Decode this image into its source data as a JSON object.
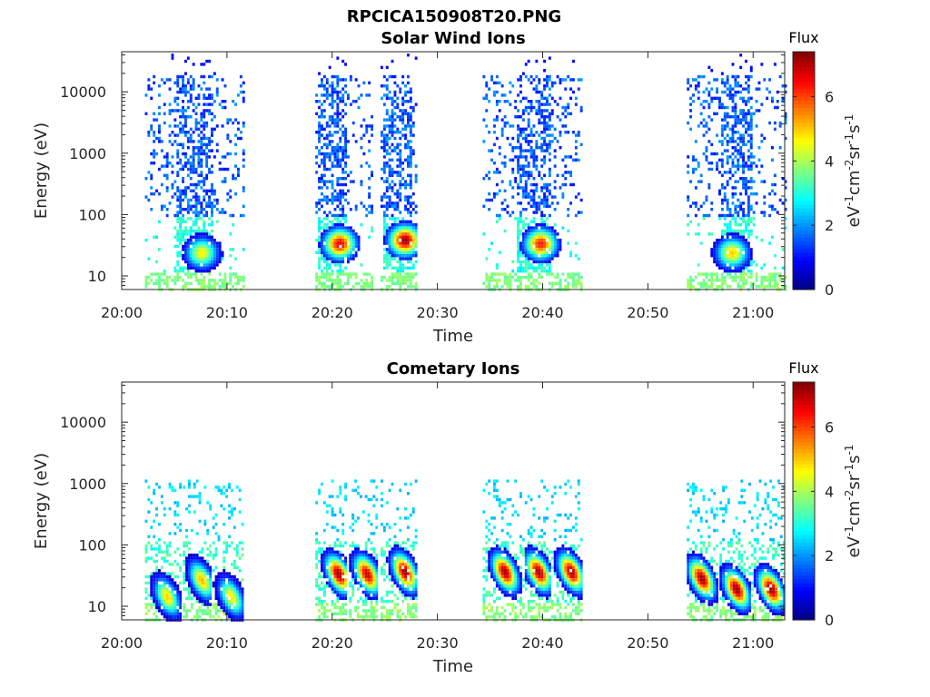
{
  "figure_title": "RPCICA150908T20.PNG",
  "chart_data": [
    {
      "type": "heatmap",
      "title": "Solar Wind Ions",
      "xlabel": "Time",
      "ylabel": "Energy (eV)",
      "x_ticks": [
        "20:00",
        "20:10",
        "20:20",
        "20:30",
        "20:40",
        "20:50",
        "21:00"
      ],
      "x_range_min": [
        0,
        63
      ],
      "y_scale": "log",
      "y_ticks": [
        "10",
        "100",
        "1000",
        "10000"
      ],
      "y_range_eV": [
        6,
        45000
      ],
      "colorbar": {
        "label": "Flux",
        "unit": "eV-1cm-2sr-1s-1",
        "ticks": [
          "0",
          "2",
          "4",
          "6"
        ],
        "range": [
          0,
          7.4
        ]
      },
      "bursts": [
        {
          "start_min": 2.2,
          "end_min": 11.6,
          "core_start": 5.2,
          "core_end": 8.6,
          "peak_min": 7.5,
          "peak_eV": 25,
          "peak_flux": 4.7
        },
        {
          "start_min": 18.4,
          "end_min": 23.8,
          "core_start": 18.6,
          "core_end": 21.2,
          "peak_min": 20.6,
          "peak_eV": 35,
          "peak_flux": 6.7
        },
        {
          "start_min": 24.6,
          "end_min": 28.0,
          "core_start": 24.8,
          "core_end": 27.6,
          "peak_min": 26.8,
          "peak_eV": 40,
          "peak_flux": 7.2
        },
        {
          "start_min": 34.3,
          "end_min": 43.7,
          "core_start": 37.5,
          "core_end": 40.6,
          "peak_min": 39.7,
          "peak_eV": 35,
          "peak_flux": 6.4
        },
        {
          "start_min": 53.7,
          "end_min": 63.0,
          "core_start": 56.9,
          "core_end": 59.8,
          "peak_min": 57.9,
          "peak_eV": 25,
          "peak_flux": 5.0
        }
      ]
    },
    {
      "type": "heatmap",
      "title": "Cometary Ions",
      "xlabel": "Time",
      "ylabel": "Energy (eV)",
      "x_ticks": [
        "20:00",
        "20:10",
        "20:20",
        "20:30",
        "20:40",
        "20:50",
        "21:00"
      ],
      "x_range_min": [
        0,
        63
      ],
      "y_scale": "log",
      "y_ticks": [
        "10",
        "100",
        "1000",
        "10000"
      ],
      "y_range_eV": [
        6,
        45000
      ],
      "colorbar": {
        "label": "Flux",
        "unit": "eV-1cm-2sr-1s-1",
        "ticks": [
          "0",
          "2",
          "4",
          "6"
        ],
        "range": [
          0,
          7.4
        ]
      },
      "bursts": [
        {
          "start_min": 2.2,
          "end_min": 5.6,
          "peak_min": 4.2,
          "peak_eV": 15,
          "peak_flux": 5.0
        },
        {
          "start_min": 5.8,
          "end_min": 8.4,
          "peak_min": 7.5,
          "peak_eV": 28,
          "peak_flux": 5.2
        },
        {
          "start_min": 8.6,
          "end_min": 11.6,
          "peak_min": 10.3,
          "peak_eV": 15,
          "peak_flux": 4.8
        },
        {
          "start_min": 18.4,
          "end_min": 21.4,
          "peak_min": 20.5,
          "peak_eV": 35,
          "peak_flux": 7.3
        },
        {
          "start_min": 21.6,
          "end_min": 24.3,
          "peak_min": 23.2,
          "peak_eV": 35,
          "peak_flux": 7.0
        },
        {
          "start_min": 24.6,
          "end_min": 28.0,
          "peak_min": 26.8,
          "peak_eV": 38,
          "peak_flux": 7.2
        },
        {
          "start_min": 34.3,
          "end_min": 38.2,
          "peak_min": 36.3,
          "peak_eV": 38,
          "peak_flux": 7.2
        },
        {
          "start_min": 38.3,
          "end_min": 40.6,
          "peak_min": 39.5,
          "peak_eV": 38,
          "peak_flux": 7.2
        },
        {
          "start_min": 40.8,
          "end_min": 43.7,
          "peak_min": 42.6,
          "peak_eV": 38,
          "peak_flux": 7.2
        },
        {
          "start_min": 53.7,
          "end_min": 56.6,
          "peak_min": 55.0,
          "peak_eV": 30,
          "peak_flux": 7.3
        },
        {
          "start_min": 56.8,
          "end_min": 59.6,
          "peak_min": 58.3,
          "peak_eV": 20,
          "peak_flux": 7.3
        },
        {
          "start_min": 59.8,
          "end_min": 63.0,
          "peak_min": 61.6,
          "peak_eV": 20,
          "peak_flux": 7.3
        }
      ]
    }
  ]
}
